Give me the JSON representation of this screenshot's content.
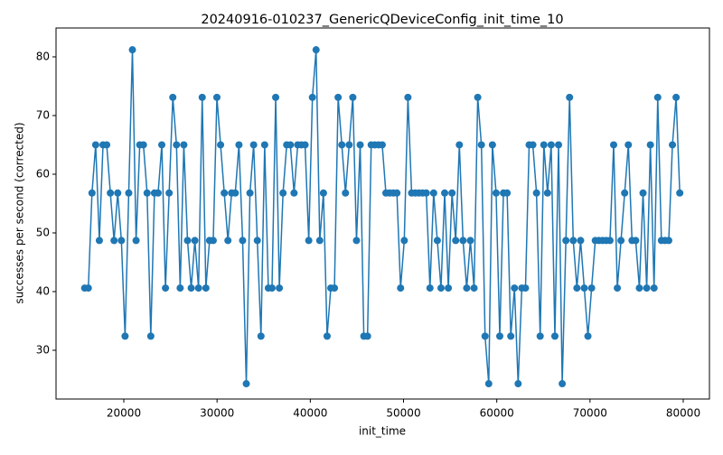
{
  "chart_data": {
    "type": "line",
    "title": "20240916-010237_GenericQDeviceConfig_init_time_10",
    "x_label": "init_time",
    "y_label": "successes per second (corrected)",
    "color": "#1f77b4",
    "x": [
      15800,
      16194,
      16588,
      16982,
      17376,
      17770,
      18164,
      18558,
      18952,
      19346,
      19740,
      20134,
      20528,
      20922,
      21316,
      21710,
      22104,
      22498,
      22892,
      23286,
      23680,
      24074,
      24468,
      24862,
      25256,
      25650,
      26044,
      26438,
      26832,
      27226,
      27620,
      28014,
      28408,
      28802,
      29196,
      29590,
      29984,
      30378,
      30772,
      31166,
      31560,
      31954,
      32348,
      32742,
      33136,
      33530,
      33924,
      34318,
      34712,
      35106,
      35500,
      35894,
      36288,
      36682,
      37076,
      37470,
      37864,
      38258,
      38652,
      39046,
      39440,
      39834,
      40228,
      40622,
      41016,
      41410,
      41804,
      42198,
      42592,
      42986,
      43380,
      43774,
      44168,
      44562,
      44956,
      45350,
      45744,
      46138,
      46532,
      46926,
      47320,
      47714,
      48108,
      48502,
      48896,
      49290,
      49684,
      50078,
      50472,
      50866,
      51260,
      51654,
      52048,
      52442,
      52836,
      53230,
      53624,
      54018,
      54412,
      54806,
      55200,
      55594,
      55988,
      56382,
      56776,
      57170,
      57564,
      57958,
      58352,
      58746,
      59140,
      59534,
      59928,
      60322,
      60716,
      61110,
      61504,
      61898,
      62292,
      62686,
      63080,
      63474,
      63868,
      64262,
      64656,
      65050,
      65444,
      65838,
      66232,
      66626,
      67020,
      67414,
      67808,
      68202,
      68596,
      68990,
      69384,
      69778,
      70172,
      70566,
      70960,
      71354,
      71748,
      72142,
      72536,
      72930,
      73324,
      73718,
      74112,
      74506,
      74900,
      75294,
      75688,
      76082,
      76476,
      76870,
      77264,
      77658,
      78052,
      78446,
      78840,
      79234,
      79628
    ],
    "values": [
      40.6,
      40.6,
      56.8,
      65,
      48.7,
      65,
      65,
      56.8,
      48.7,
      56.8,
      48.7,
      32.4,
      56.8,
      81.2,
      48.7,
      65,
      65,
      56.8,
      32.4,
      56.8,
      56.8,
      65,
      40.6,
      56.8,
      73.1,
      65,
      40.6,
      65,
      48.7,
      40.6,
      48.7,
      40.6,
      73.1,
      40.6,
      48.7,
      48.7,
      73.1,
      65,
      56.8,
      48.7,
      56.8,
      56.8,
      65,
      48.7,
      24.3,
      56.8,
      65,
      48.7,
      32.4,
      65,
      40.6,
      40.6,
      73.1,
      40.6,
      56.8,
      65,
      65,
      56.8,
      65,
      65,
      65,
      48.7,
      73.1,
      81.2,
      48.7,
      56.8,
      32.4,
      40.6,
      40.6,
      73.1,
      65,
      56.8,
      65,
      73.1,
      48.7,
      65,
      32.4,
      32.4,
      65,
      65,
      65,
      65,
      56.8,
      56.8,
      56.8,
      56.8,
      40.6,
      48.7,
      73.1,
      56.8,
      56.8,
      56.8,
      56.8,
      56.8,
      40.6,
      56.8,
      48.7,
      40.6,
      56.8,
      40.6,
      56.8,
      48.7,
      65,
      48.7,
      40.6,
      48.7,
      40.6,
      73.1,
      65,
      32.4,
      24.3,
      65,
      56.8,
      32.4,
      56.8,
      56.8,
      32.4,
      40.6,
      24.3,
      40.6,
      40.6,
      65,
      65,
      56.8,
      32.4,
      65,
      56.8,
      65,
      32.4,
      65,
      24.3,
      48.7,
      73.1,
      48.7,
      40.6,
      48.7,
      40.6,
      32.4,
      40.6,
      48.7,
      48.7,
      48.7,
      48.7,
      48.7,
      65,
      40.6,
      48.7,
      56.8,
      65,
      48.7,
      48.7,
      40.6,
      56.8,
      40.6,
      65,
      40.6,
      73.1,
      48.7,
      48.7,
      48.7,
      65,
      73.1,
      56.8
    ],
    "xlim": [
      12730,
      82810
    ],
    "ylim": [
      21.69,
      84.92
    ],
    "xticks": [
      20000,
      30000,
      40000,
      50000,
      60000,
      70000,
      80000
    ],
    "yticks": [
      30,
      40,
      50,
      60,
      70,
      80
    ]
  }
}
